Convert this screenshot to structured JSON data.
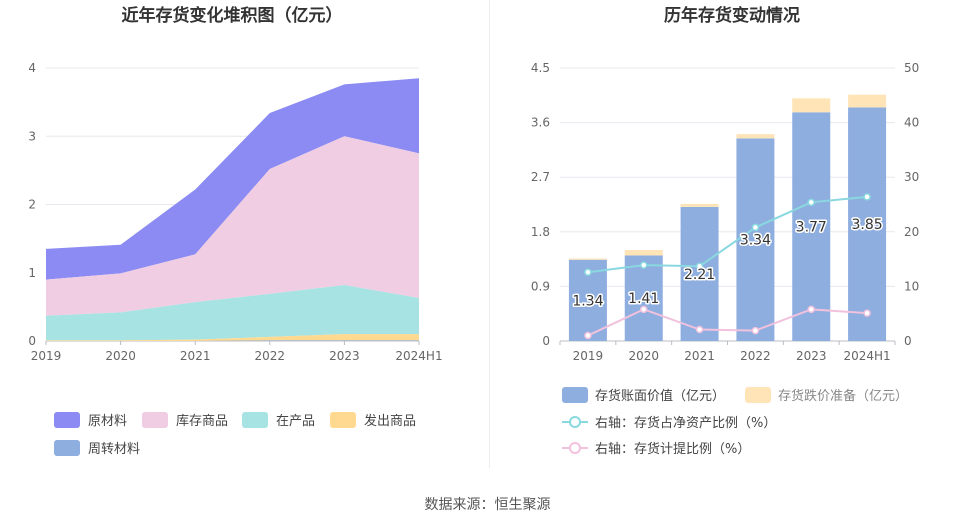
{
  "left_chart": {
    "title": "近年存货变化堆积图（亿元）",
    "legend": [
      "原材料",
      "库存商品",
      "在产品",
      "发出商品",
      "周转材料"
    ]
  },
  "right_chart": {
    "title": "历年存货变动情况",
    "legend": [
      "存货账面价值（亿元）",
      "存货跌价准备（亿元）",
      "右轴：存货占净资产比例（%）",
      "右轴：存货计提比例（%）"
    ]
  },
  "source": "数据来源：恒生聚源",
  "chart_data": [
    {
      "type": "area",
      "stacked": true,
      "title": "近年存货变化堆积图（亿元）",
      "categories": [
        "2019",
        "2020",
        "2021",
        "2022",
        "2023",
        "2024H1"
      ],
      "ylim": [
        0,
        4
      ],
      "yticks": [
        0,
        1,
        2,
        3,
        4
      ],
      "grid": true,
      "legend_position": "bottom-left",
      "series": [
        {
          "name": "原材料",
          "color": "#8b8bf3",
          "values": [
            0.45,
            0.42,
            0.95,
            0.82,
            0.76,
            1.1
          ]
        },
        {
          "name": "库存商品",
          "color": "#f0cde3",
          "values": [
            0.53,
            0.57,
            0.7,
            1.83,
            2.18,
            2.12
          ]
        },
        {
          "name": "在产品",
          "color": "#a8e3e3",
          "values": [
            0.36,
            0.41,
            0.55,
            0.63,
            0.72,
            0.53
          ]
        },
        {
          "name": "发出商品",
          "color": "#ffd990",
          "values": [
            0.01,
            0.01,
            0.02,
            0.05,
            0.09,
            0.09
          ]
        },
        {
          "name": "周转材料",
          "color": "#8eaedf",
          "values": [
            0.0,
            0.0,
            0.0,
            0.01,
            0.01,
            0.01
          ]
        }
      ]
    },
    {
      "type": "bar",
      "stacked": true,
      "title": "历年存货变动情况",
      "categories": [
        "2019",
        "2020",
        "2021",
        "2022",
        "2023",
        "2024H1"
      ],
      "ylim": [
        0,
        4.5
      ],
      "yticks": [
        0,
        0.9,
        1.8,
        2.7,
        3.6,
        4.5
      ],
      "y2lim": [
        0,
        50
      ],
      "y2ticks": [
        0,
        10,
        20,
        30,
        40,
        50
      ],
      "grid": true,
      "legend_position": "bottom-left",
      "series": [
        {
          "name": "存货账面价值（亿元）",
          "color": "#8eaedf",
          "axis": "left",
          "values": [
            1.34,
            1.41,
            2.21,
            3.34,
            3.77,
            3.85
          ],
          "labels": [
            "1.34",
            "1.41",
            "2.21",
            "3.34",
            "3.77",
            "3.85"
          ]
        },
        {
          "name": "存货跌价准备（亿元）",
          "color": "#ffe4b8",
          "axis": "left",
          "values": [
            0.02,
            0.09,
            0.05,
            0.07,
            0.23,
            0.21
          ]
        },
        {
          "name": "右轴：存货占净资产比例（%）",
          "color": "#8ad8df",
          "axis": "right",
          "type": "line",
          "values": [
            12.6,
            13.9,
            13.7,
            20.8,
            25.4,
            26.4
          ]
        },
        {
          "name": "右轴：存货计提比例（%）",
          "color": "#f2c1dd",
          "axis": "right",
          "type": "line",
          "values": [
            1.0,
            5.8,
            2.1,
            1.9,
            5.8,
            5.1
          ]
        }
      ]
    }
  ]
}
